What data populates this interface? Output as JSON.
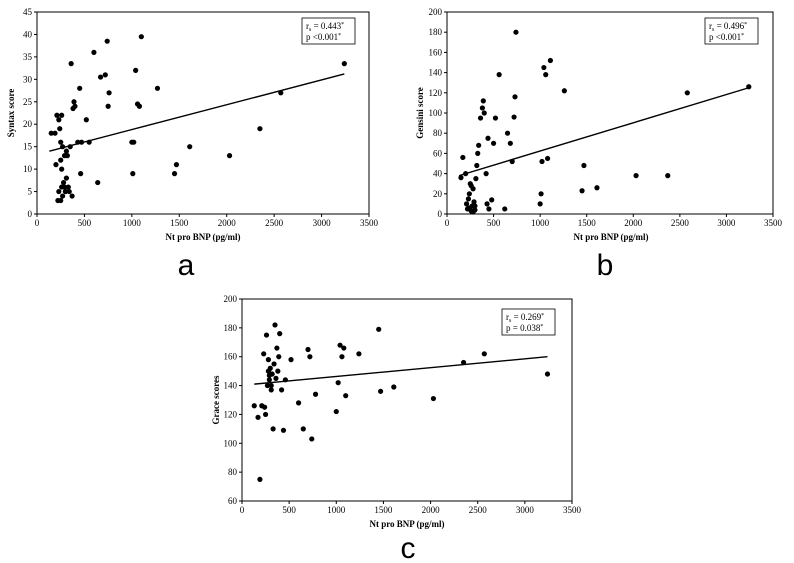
{
  "chart_data": [
    {
      "type": "scatter",
      "panel_label": "a",
      "xlabel": "Nt pro BNP (pg/ml)",
      "ylabel": "Syntax score",
      "xlim": [
        0,
        3500
      ],
      "ylim": [
        0,
        45
      ],
      "x_ticks": [
        0,
        500,
        1000,
        1500,
        2000,
        2500,
        3000,
        3500
      ],
      "y_ticks": [
        0,
        5,
        10,
        15,
        20,
        25,
        30,
        35,
        40,
        45
      ],
      "stat_r": "r",
      "stat_r_sub": "s",
      "stat_r_val": " = 0.443",
      "stat_r_sup": "*",
      "stat_p": "p <0.001",
      "stat_p_sup": "*",
      "trendline": {
        "x1": 130,
        "y1": 14,
        "x2": 3240,
        "y2": 31.2
      },
      "points": [
        [
          150,
          18
        ],
        [
          190,
          18
        ],
        [
          210,
          22
        ],
        [
          230,
          21
        ],
        [
          240,
          19
        ],
        [
          250,
          16
        ],
        [
          260,
          22
        ],
        [
          270,
          15
        ],
        [
          290,
          13
        ],
        [
          320,
          13
        ],
        [
          200,
          11
        ],
        [
          260,
          10
        ],
        [
          230,
          5
        ],
        [
          250,
          3
        ],
        [
          270,
          4
        ],
        [
          280,
          7
        ],
        [
          290,
          6
        ],
        [
          300,
          5
        ],
        [
          310,
          8
        ],
        [
          330,
          6
        ],
        [
          340,
          5
        ],
        [
          370,
          4
        ],
        [
          250,
          12
        ],
        [
          350,
          15
        ],
        [
          360,
          33.5
        ],
        [
          380,
          23.5
        ],
        [
          390,
          25
        ],
        [
          400,
          24
        ],
        [
          430,
          16
        ],
        [
          450,
          28
        ],
        [
          460,
          9
        ],
        [
          470,
          16
        ],
        [
          520,
          21
        ],
        [
          550,
          16
        ],
        [
          600,
          36
        ],
        [
          640,
          7
        ],
        [
          670,
          30.5
        ],
        [
          720,
          31
        ],
        [
          740,
          38.5
        ],
        [
          750,
          24
        ],
        [
          760,
          27
        ],
        [
          1000,
          16
        ],
        [
          1010,
          9
        ],
        [
          1020,
          16
        ],
        [
          1040,
          32
        ],
        [
          1060,
          24.5
        ],
        [
          1080,
          24
        ],
        [
          1100,
          39.5
        ],
        [
          1270,
          28
        ],
        [
          1450,
          9
        ],
        [
          1470,
          11
        ],
        [
          1610,
          15
        ],
        [
          2030,
          13
        ],
        [
          2350,
          19
        ],
        [
          2570,
          27
        ],
        [
          3240,
          33.5
        ],
        [
          300,
          5
        ],
        [
          220,
          3
        ],
        [
          260,
          6
        ],
        [
          310,
          14
        ]
      ]
    },
    {
      "type": "scatter",
      "panel_label": "b",
      "xlabel": "Nt pro BNP (pg/ml)",
      "ylabel": "Gensini score",
      "xlim": [
        0,
        3500
      ],
      "ylim": [
        0,
        200
      ],
      "x_ticks": [
        0,
        500,
        1000,
        1500,
        2000,
        2500,
        3000,
        3500
      ],
      "y_ticks": [
        0,
        20,
        40,
        60,
        80,
        100,
        120,
        140,
        160,
        180,
        200
      ],
      "stat_r": "r",
      "stat_r_sub": "s",
      "stat_r_val": " = 0.496",
      "stat_r_sup": "*",
      "stat_p": "p <0.001",
      "stat_p_sup": "*",
      "trendline": {
        "x1": 130,
        "y1": 38,
        "x2": 3240,
        "y2": 125
      },
      "points": [
        [
          150,
          36
        ],
        [
          170,
          56
        ],
        [
          200,
          40
        ],
        [
          210,
          10
        ],
        [
          220,
          5
        ],
        [
          230,
          15
        ],
        [
          240,
          20
        ],
        [
          250,
          30
        ],
        [
          260,
          28
        ],
        [
          270,
          8
        ],
        [
          280,
          25
        ],
        [
          290,
          12
        ],
        [
          300,
          4
        ],
        [
          310,
          35
        ],
        [
          320,
          48
        ],
        [
          330,
          60
        ],
        [
          340,
          68
        ],
        [
          360,
          95
        ],
        [
          380,
          105
        ],
        [
          390,
          112
        ],
        [
          400,
          100
        ],
        [
          420,
          40
        ],
        [
          430,
          10
        ],
        [
          440,
          75
        ],
        [
          450,
          5
        ],
        [
          480,
          14
        ],
        [
          500,
          70
        ],
        [
          520,
          95
        ],
        [
          560,
          138
        ],
        [
          620,
          5
        ],
        [
          650,
          80
        ],
        [
          680,
          70
        ],
        [
          700,
          52
        ],
        [
          720,
          96
        ],
        [
          730,
          116
        ],
        [
          740,
          180
        ],
        [
          1000,
          10
        ],
        [
          1010,
          20
        ],
        [
          1020,
          52
        ],
        [
          1040,
          145
        ],
        [
          1060,
          138
        ],
        [
          1080,
          55
        ],
        [
          1110,
          152
        ],
        [
          1260,
          122
        ],
        [
          1450,
          23
        ],
        [
          1470,
          48
        ],
        [
          1610,
          26
        ],
        [
          2030,
          38
        ],
        [
          2370,
          38
        ],
        [
          2580,
          120
        ],
        [
          3240,
          126
        ],
        [
          260,
          3
        ],
        [
          240,
          6
        ],
        [
          280,
          2
        ],
        [
          300,
          8
        ]
      ]
    },
    {
      "type": "scatter",
      "panel_label": "c",
      "xlabel": "Nt pro BNP (pg/ml)",
      "ylabel": "Grace scores",
      "xlim": [
        0,
        3500
      ],
      "ylim": [
        60,
        200
      ],
      "x_ticks": [
        0,
        500,
        1000,
        1500,
        2000,
        2500,
        3000,
        3500
      ],
      "y_ticks": [
        60,
        80,
        100,
        120,
        140,
        160,
        180,
        200
      ],
      "stat_r": "r",
      "stat_r_sub": "s",
      "stat_r_val": " = 0.269",
      "stat_r_sup": "*",
      "stat_p": "p = 0.038",
      "stat_p_sup": "*",
      "trendline": {
        "x1": 130,
        "y1": 141,
        "x2": 3240,
        "y2": 160
      },
      "points": [
        [
          130,
          126
        ],
        [
          170,
          118
        ],
        [
          190,
          75
        ],
        [
          210,
          126
        ],
        [
          230,
          162
        ],
        [
          240,
          125
        ],
        [
          250,
          120
        ],
        [
          260,
          175
        ],
        [
          270,
          140
        ],
        [
          280,
          158
        ],
        [
          290,
          147
        ],
        [
          300,
          152
        ],
        [
          310,
          137
        ],
        [
          320,
          148
        ],
        [
          330,
          110
        ],
        [
          340,
          155
        ],
        [
          350,
          182
        ],
        [
          360,
          145
        ],
        [
          370,
          166
        ],
        [
          380,
          150
        ],
        [
          390,
          160
        ],
        [
          400,
          176
        ],
        [
          420,
          137
        ],
        [
          440,
          109
        ],
        [
          460,
          144
        ],
        [
          520,
          158
        ],
        [
          600,
          128
        ],
        [
          650,
          110
        ],
        [
          700,
          165
        ],
        [
          720,
          160
        ],
        [
          740,
          103
        ],
        [
          780,
          134
        ],
        [
          1000,
          122
        ],
        [
          1020,
          142
        ],
        [
          1040,
          168
        ],
        [
          1060,
          160
        ],
        [
          1080,
          166
        ],
        [
          1100,
          133
        ],
        [
          1240,
          162
        ],
        [
          1450,
          179
        ],
        [
          1470,
          136
        ],
        [
          1610,
          139
        ],
        [
          2030,
          131
        ],
        [
          2350,
          156
        ],
        [
          2570,
          162
        ],
        [
          3240,
          148
        ],
        [
          290,
          144
        ],
        [
          310,
          140
        ],
        [
          280,
          150
        ]
      ]
    }
  ]
}
